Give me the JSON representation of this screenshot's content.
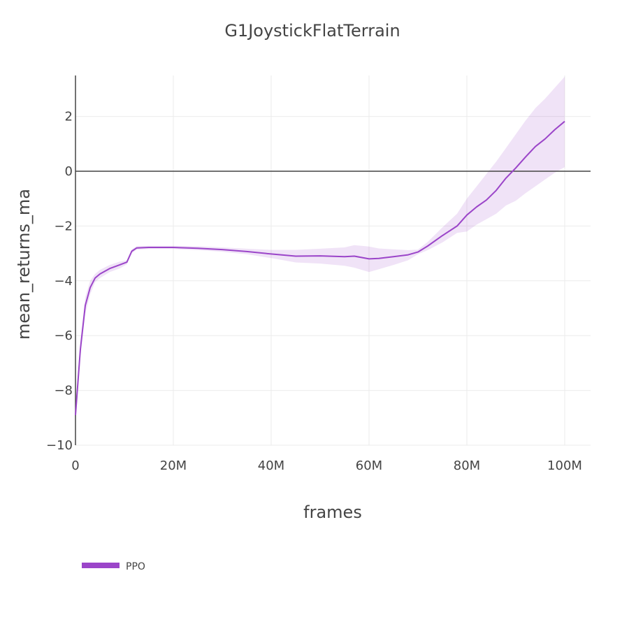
{
  "chart_data": {
    "type": "line",
    "title": "G1JoystickFlatTerrain",
    "xlabel": "frames",
    "ylabel": "mean_returns_ma",
    "xlim": [
      0,
      105000000
    ],
    "ylim": [
      -10.1,
      3.5
    ],
    "x_ticks": [
      0,
      20000000,
      40000000,
      60000000,
      80000000,
      100000000
    ],
    "x_tick_labels": [
      "0",
      "20M",
      "40M",
      "60M",
      "80M",
      "100M"
    ],
    "y_ticks": [
      2,
      0,
      -2,
      -4,
      -6,
      -8,
      -10
    ],
    "y_tick_labels": [
      "2",
      "0",
      "−2",
      "−4",
      "−6",
      "−8",
      "−10"
    ],
    "grid": true,
    "zero_line": true,
    "legend_position": "bottom-left",
    "series": [
      {
        "name": "PPO",
        "color": "#9b45c9",
        "band_color": "rgba(155,69,201,0.15)",
        "x_millions": [
          0,
          1,
          2,
          3,
          4,
          5,
          7,
          9,
          10.5,
          11.5,
          12.5,
          15,
          20,
          25,
          30,
          35,
          40,
          45,
          50,
          55,
          57,
          60,
          62,
          65,
          68,
          70,
          72,
          75,
          78,
          80,
          82,
          84,
          86,
          88,
          90,
          92,
          94,
          96,
          98,
          100
        ],
        "mean": [
          -8.9,
          -6.5,
          -4.9,
          -4.25,
          -3.9,
          -3.75,
          -3.55,
          -3.42,
          -3.32,
          -2.92,
          -2.8,
          -2.78,
          -2.78,
          -2.81,
          -2.86,
          -2.93,
          -3.02,
          -3.1,
          -3.09,
          -3.12,
          -3.1,
          -3.2,
          -3.18,
          -3.12,
          -3.05,
          -2.95,
          -2.73,
          -2.35,
          -2.0,
          -1.6,
          -1.3,
          -1.05,
          -0.7,
          -0.25,
          0.12,
          0.52,
          0.9,
          1.18,
          1.52,
          1.82
        ],
        "upper": [
          -8.6,
          -6.2,
          -4.6,
          -4.0,
          -3.75,
          -3.6,
          -3.42,
          -3.3,
          -3.25,
          -2.85,
          -2.74,
          -2.72,
          -2.72,
          -2.74,
          -2.78,
          -2.83,
          -2.87,
          -2.87,
          -2.83,
          -2.78,
          -2.7,
          -2.75,
          -2.82,
          -2.85,
          -2.88,
          -2.86,
          -2.58,
          -2.05,
          -1.55,
          -1.0,
          -0.55,
          -0.1,
          0.35,
          0.85,
          1.35,
          1.85,
          2.3,
          2.65,
          3.05,
          3.45
        ],
        "lower": [
          -9.2,
          -6.8,
          -5.2,
          -4.5,
          -4.05,
          -3.9,
          -3.68,
          -3.55,
          -3.4,
          -3.0,
          -2.86,
          -2.84,
          -2.84,
          -2.88,
          -2.94,
          -3.03,
          -3.17,
          -3.33,
          -3.37,
          -3.45,
          -3.52,
          -3.68,
          -3.58,
          -3.42,
          -3.25,
          -3.03,
          -2.88,
          -2.6,
          -2.25,
          -2.2,
          -1.95,
          -1.75,
          -1.55,
          -1.25,
          -1.08,
          -0.8,
          -0.55,
          -0.3,
          -0.05,
          0.15
        ]
      }
    ]
  }
}
